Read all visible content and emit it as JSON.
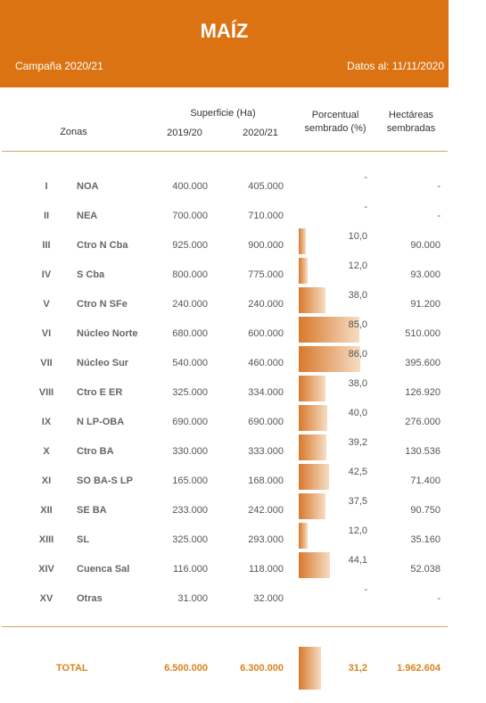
{
  "header": {
    "title": "MAÍZ",
    "campaign": "Campaña 2020/21",
    "date": "Datos al: 11/11/2020"
  },
  "columns": {
    "zonas": "Zonas",
    "superficie": "Superficie (Ha)",
    "y1": "2019/20",
    "y2": "2020/21",
    "pct_line1": "Porcentual",
    "pct_line2": "sembrado (%)",
    "ha_line1": "Hectáreas",
    "ha_line2": "sembradas"
  },
  "rows": [
    {
      "roman": "I",
      "zone": "NOA",
      "s1": "400.000",
      "s2": "405.000",
      "pct": "-",
      "ha": "-"
    },
    {
      "roman": "II",
      "zone": "NEA",
      "s1": "700.000",
      "s2": "710.000",
      "pct": "-",
      "ha": "-"
    },
    {
      "roman": "III",
      "zone": "Ctro N Cba",
      "s1": "925.000",
      "s2": "900.000",
      "pct": "10,0",
      "ha": "90.000",
      "pv": 10.0
    },
    {
      "roman": "IV",
      "zone": "S Cba",
      "s1": "800.000",
      "s2": "775.000",
      "pct": "12,0",
      "ha": "93.000",
      "pv": 12.0
    },
    {
      "roman": "V",
      "zone": "Ctro N SFe",
      "s1": "240.000",
      "s2": "240.000",
      "pct": "38,0",
      "ha": "91.200",
      "pv": 38.0
    },
    {
      "roman": "VI",
      "zone": "Núcleo Norte",
      "s1": "680.000",
      "s2": "600.000",
      "pct": "85,0",
      "ha": "510.000",
      "pv": 85.0
    },
    {
      "roman": "VII",
      "zone": "Núcleo Sur",
      "s1": "540.000",
      "s2": "460.000",
      "pct": "86,0",
      "ha": "395.600",
      "pv": 86.0
    },
    {
      "roman": "VIII",
      "zone": "Ctro E ER",
      "s1": "325.000",
      "s2": "334.000",
      "pct": "38,0",
      "ha": "126.920",
      "pv": 38.0
    },
    {
      "roman": "IX",
      "zone": "N LP-OBA",
      "s1": "690.000",
      "s2": "690.000",
      "pct": "40,0",
      "ha": "276.000",
      "pv": 40.0
    },
    {
      "roman": "X",
      "zone": "Ctro BA",
      "s1": "330.000",
      "s2": "333.000",
      "pct": "39,2",
      "ha": "130.536",
      "pv": 39.2
    },
    {
      "roman": "XI",
      "zone": "SO BA-S LP",
      "s1": "165.000",
      "s2": "168.000",
      "pct": "42,5",
      "ha": "71.400",
      "pv": 42.5
    },
    {
      "roman": "XII",
      "zone": "SE BA",
      "s1": "233.000",
      "s2": "242.000",
      "pct": "37,5",
      "ha": "90.750",
      "pv": 37.5
    },
    {
      "roman": "XIII",
      "zone": "SL",
      "s1": "325.000",
      "s2": "293.000",
      "pct": "12,0",
      "ha": "35.160",
      "pv": 12.0
    },
    {
      "roman": "XIV",
      "zone": "Cuenca Sal",
      "s1": "116.000",
      "s2": "118.000",
      "pct": "44,1",
      "ha": "52.038",
      "pv": 44.1
    },
    {
      "roman": "XV",
      "zone": "Otras",
      "s1": "31.000",
      "s2": "32.000",
      "pct": "-",
      "ha": "-"
    }
  ],
  "total": {
    "label": "TOTAL",
    "s1": "6.500.000",
    "s2": "6.300.000",
    "pct": "31,2",
    "ha": "1.962.604",
    "pv": 31.2
  }
}
